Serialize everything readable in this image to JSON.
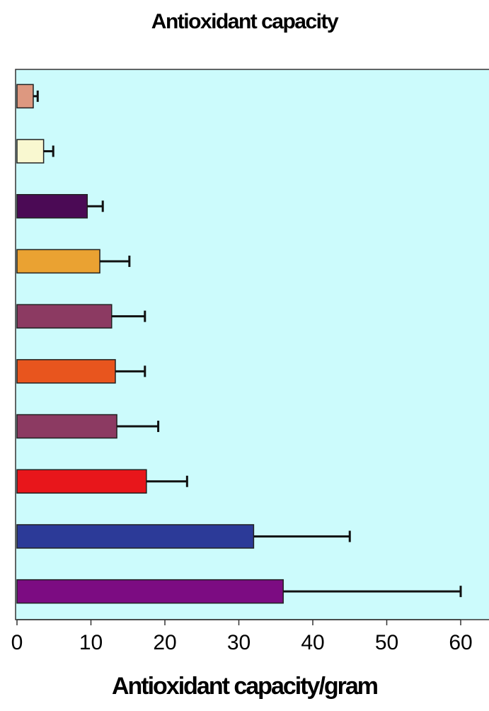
{
  "chart_data": {
    "type": "bar",
    "orientation": "horizontal",
    "title": "Antioxidant capacity",
    "xlabel": "Antioxidant capacity/gram",
    "ylabel": "",
    "xlim": [
      0,
      60
    ],
    "xticks": [
      "0",
      "10",
      "20",
      "30",
      "40",
      "50",
      "60"
    ],
    "background_color": "#ccfbfc",
    "grid": false,
    "bars": [
      {
        "value": 2.2,
        "error": 0.6,
        "color": "#dd9880"
      },
      {
        "value": 3.6,
        "error": 1.3,
        "color": "#f9f8d0"
      },
      {
        "value": 9.5,
        "error": 2.1,
        "color": "#4b0a55"
      },
      {
        "value": 11.2,
        "error": 4.0,
        "color": "#eaa232"
      },
      {
        "value": 12.8,
        "error": 4.5,
        "color": "#8c3a62"
      },
      {
        "value": 13.3,
        "error": 4.0,
        "color": "#e8551e"
      },
      {
        "value": 13.5,
        "error": 5.6,
        "color": "#8c3a62"
      },
      {
        "value": 17.5,
        "error": 5.5,
        "color": "#e8161b"
      },
      {
        "value": 32.0,
        "error": 13.0,
        "color": "#2c3a98"
      },
      {
        "value": 36.0,
        "error": 24.0,
        "color": "#7c0c82"
      }
    ]
  }
}
